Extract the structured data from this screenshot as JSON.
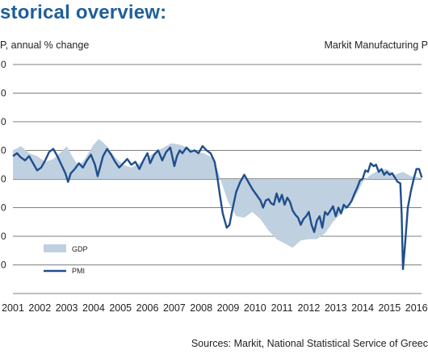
{
  "title": "storical overview:",
  "left_axis_label": "P, annual % change",
  "right_axis_label": "Markit Manufacturing P",
  "sources": "Sources: Markit, National Statistical Service of Greec",
  "colors": {
    "title": "#1f5f9a",
    "gdp_fill": "#bfd0e0",
    "pmi_line": "#1f4e8c",
    "grid": "#555555"
  },
  "chart_data": {
    "type": "area",
    "x_tick_labels": [
      "2001",
      "2002",
      "2003",
      "2004",
      "2005",
      "2006",
      "2007",
      "2008",
      "2009",
      "2010",
      "2011",
      "2012",
      "2013",
      "2014",
      "2015",
      "2016"
    ],
    "xlim": [
      2001.0,
      2016.25
    ],
    "ylim": [
      -8,
      8
    ],
    "y_gridlines": [
      -8,
      -6,
      -4,
      -2,
      0,
      2,
      4,
      6,
      8
    ],
    "y_tick_labels": [
      "0",
      "0",
      "0",
      "0",
      "0",
      "0",
      "0",
      "0"
    ],
    "grid": true,
    "legend_position": "bottom-left",
    "series": [
      {
        "name": "GDP",
        "style": "area",
        "points": [
          [
            2001.0,
            2.0
          ],
          [
            2001.3,
            2.3
          ],
          [
            2001.6,
            1.8
          ],
          [
            2001.9,
            1.6
          ],
          [
            2002.2,
            1.2
          ],
          [
            2002.5,
            1.4
          ],
          [
            2002.8,
            1.9
          ],
          [
            2003.0,
            2.3
          ],
          [
            2003.2,
            1.6
          ],
          [
            2003.4,
            1.0
          ],
          [
            2003.6,
            1.2
          ],
          [
            2003.8,
            1.8
          ],
          [
            2004.0,
            2.4
          ],
          [
            2004.2,
            2.8
          ],
          [
            2004.5,
            2.3
          ],
          [
            2004.8,
            1.5
          ],
          [
            2005.1,
            1.0
          ],
          [
            2005.4,
            0.8
          ],
          [
            2005.7,
            1.1
          ],
          [
            2006.0,
            1.5
          ],
          [
            2006.3,
            1.9
          ],
          [
            2006.6,
            2.2
          ],
          [
            2006.9,
            2.5
          ],
          [
            2007.2,
            2.4
          ],
          [
            2007.5,
            2.2
          ],
          [
            2007.8,
            1.9
          ],
          [
            2008.1,
            1.8
          ],
          [
            2008.4,
            1.5
          ],
          [
            2008.6,
            0.7
          ],
          [
            2008.8,
            -0.5
          ],
          [
            2009.0,
            -1.6
          ],
          [
            2009.3,
            -2.6
          ],
          [
            2009.6,
            -2.7
          ],
          [
            2009.9,
            -2.3
          ],
          [
            2010.2,
            -2.8
          ],
          [
            2010.5,
            -3.6
          ],
          [
            2010.8,
            -4.2
          ],
          [
            2011.1,
            -4.5
          ],
          [
            2011.4,
            -4.8
          ],
          [
            2011.7,
            -4.3
          ],
          [
            2012.0,
            -4.2
          ],
          [
            2012.3,
            -4.2
          ],
          [
            2012.6,
            -3.8
          ],
          [
            2012.9,
            -3.0
          ],
          [
            2013.2,
            -2.4
          ],
          [
            2013.5,
            -1.8
          ],
          [
            2013.8,
            -1.0
          ],
          [
            2014.0,
            -0.2
          ],
          [
            2014.3,
            0.3
          ],
          [
            2014.6,
            0.6
          ],
          [
            2014.9,
            0.7
          ],
          [
            2015.2,
            0.3
          ],
          [
            2015.5,
            0.5
          ],
          [
            2015.8,
            0.2
          ],
          [
            2016.1,
            0.1
          ]
        ]
      },
      {
        "name": "PMI",
        "style": "line",
        "points": [
          [
            2001.0,
            1.6
          ],
          [
            2001.15,
            1.8
          ],
          [
            2001.3,
            1.5
          ],
          [
            2001.45,
            1.3
          ],
          [
            2001.6,
            1.6
          ],
          [
            2001.75,
            1.1
          ],
          [
            2001.9,
            0.6
          ],
          [
            2002.05,
            0.8
          ],
          [
            2002.2,
            1.3
          ],
          [
            2002.35,
            1.9
          ],
          [
            2002.5,
            2.1
          ],
          [
            2002.65,
            1.6
          ],
          [
            2002.8,
            1.0
          ],
          [
            2002.95,
            0.4
          ],
          [
            2003.05,
            -0.2
          ],
          [
            2003.15,
            0.4
          ],
          [
            2003.3,
            0.7
          ],
          [
            2003.45,
            1.1
          ],
          [
            2003.6,
            0.8
          ],
          [
            2003.75,
            1.3
          ],
          [
            2003.9,
            1.7
          ],
          [
            2004.05,
            1.0
          ],
          [
            2004.15,
            0.2
          ],
          [
            2004.25,
            0.9
          ],
          [
            2004.35,
            1.6
          ],
          [
            2004.5,
            2.1
          ],
          [
            2004.65,
            1.7
          ],
          [
            2004.8,
            1.2
          ],
          [
            2004.95,
            0.8
          ],
          [
            2005.1,
            1.1
          ],
          [
            2005.25,
            1.4
          ],
          [
            2005.4,
            1.0
          ],
          [
            2005.55,
            1.2
          ],
          [
            2005.7,
            0.7
          ],
          [
            2005.85,
            1.3
          ],
          [
            2006.0,
            1.8
          ],
          [
            2006.1,
            1.1
          ],
          [
            2006.25,
            1.7
          ],
          [
            2006.4,
            2.0
          ],
          [
            2006.55,
            1.3
          ],
          [
            2006.7,
            1.9
          ],
          [
            2006.85,
            2.2
          ],
          [
            2007.0,
            0.9
          ],
          [
            2007.1,
            1.6
          ],
          [
            2007.2,
            2.0
          ],
          [
            2007.3,
            1.8
          ],
          [
            2007.45,
            2.2
          ],
          [
            2007.6,
            1.9
          ],
          [
            2007.75,
            2.0
          ],
          [
            2007.9,
            1.8
          ],
          [
            2008.05,
            2.3
          ],
          [
            2008.2,
            2.0
          ],
          [
            2008.35,
            1.8
          ],
          [
            2008.5,
            1.2
          ],
          [
            2008.6,
            0.1
          ],
          [
            2008.7,
            -1.2
          ],
          [
            2008.8,
            -2.4
          ],
          [
            2008.95,
            -3.4
          ],
          [
            2009.05,
            -3.2
          ],
          [
            2009.15,
            -2.2
          ],
          [
            2009.3,
            -0.9
          ],
          [
            2009.45,
            -0.2
          ],
          [
            2009.6,
            0.3
          ],
          [
            2009.75,
            -0.2
          ],
          [
            2009.9,
            -0.7
          ],
          [
            2010.05,
            -1.1
          ],
          [
            2010.2,
            -1.5
          ],
          [
            2010.3,
            -2.0
          ],
          [
            2010.4,
            -1.5
          ],
          [
            2010.5,
            -1.4
          ],
          [
            2010.6,
            -1.7
          ],
          [
            2010.7,
            -1.8
          ],
          [
            2010.8,
            -1.0
          ],
          [
            2010.9,
            -1.6
          ],
          [
            2011.0,
            -1.1
          ],
          [
            2011.1,
            -1.8
          ],
          [
            2011.2,
            -1.3
          ],
          [
            2011.3,
            -1.6
          ],
          [
            2011.4,
            -2.2
          ],
          [
            2011.5,
            -2.5
          ],
          [
            2011.6,
            -2.7
          ],
          [
            2011.7,
            -3.2
          ],
          [
            2011.8,
            -2.8
          ],
          [
            2011.9,
            -2.6
          ],
          [
            2012.0,
            -2.3
          ],
          [
            2012.1,
            -3.2
          ],
          [
            2012.2,
            -3.7
          ],
          [
            2012.3,
            -2.9
          ],
          [
            2012.4,
            -2.6
          ],
          [
            2012.5,
            -3.4
          ],
          [
            2012.6,
            -2.3
          ],
          [
            2012.7,
            -2.5
          ],
          [
            2012.8,
            -2.2
          ],
          [
            2012.9,
            -1.9
          ],
          [
            2013.0,
            -2.6
          ],
          [
            2013.1,
            -2.0
          ],
          [
            2013.2,
            -2.4
          ],
          [
            2013.3,
            -1.8
          ],
          [
            2013.4,
            -2.0
          ],
          [
            2013.5,
            -1.8
          ],
          [
            2013.6,
            -1.5
          ],
          [
            2013.7,
            -1.0
          ],
          [
            2013.8,
            -0.6
          ],
          [
            2013.9,
            -0.1
          ],
          [
            2014.0,
            0.0
          ],
          [
            2014.1,
            0.6
          ],
          [
            2014.2,
            0.5
          ],
          [
            2014.3,
            1.1
          ],
          [
            2014.4,
            0.9
          ],
          [
            2014.5,
            1.0
          ],
          [
            2014.6,
            0.5
          ],
          [
            2014.7,
            0.7
          ],
          [
            2014.8,
            0.3
          ],
          [
            2014.9,
            0.5
          ],
          [
            2015.0,
            0.3
          ],
          [
            2015.1,
            0.4
          ],
          [
            2015.2,
            0.1
          ],
          [
            2015.3,
            -0.2
          ],
          [
            2015.4,
            -0.3
          ],
          [
            2015.45,
            -2.5
          ],
          [
            2015.5,
            -6.3
          ],
          [
            2015.58,
            -4.5
          ],
          [
            2015.68,
            -2.0
          ],
          [
            2015.8,
            -0.8
          ],
          [
            2015.9,
            0.0
          ],
          [
            2016.0,
            0.7
          ],
          [
            2016.1,
            0.7
          ],
          [
            2016.2,
            0.1
          ]
        ]
      }
    ]
  }
}
